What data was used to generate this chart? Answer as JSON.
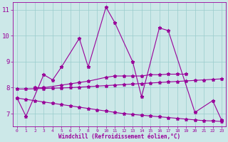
{
  "xlabel": "Windchill (Refroidissement éolien,°C)",
  "background_color": "#cce8e8",
  "line_color": "#990099",
  "grid_color": "#99cccc",
  "xlim": [
    -0.5,
    23.5
  ],
  "ylim": [
    6.5,
    11.3
  ],
  "xticks": [
    0,
    1,
    2,
    3,
    4,
    5,
    6,
    7,
    8,
    9,
    10,
    11,
    12,
    13,
    14,
    15,
    16,
    17,
    18,
    19,
    20,
    21,
    22,
    23
  ],
  "yticks": [
    7,
    8,
    9,
    10,
    11
  ],
  "s1_x": [
    0,
    1,
    3,
    4,
    5,
    7,
    8,
    10,
    11,
    13,
    14,
    16,
    17,
    20,
    22,
    23
  ],
  "s1_y": [
    7.6,
    6.9,
    8.5,
    8.3,
    8.8,
    9.9,
    8.8,
    11.1,
    10.5,
    9.0,
    7.65,
    10.3,
    10.2,
    7.05,
    7.5,
    6.75
  ],
  "s2_x": [
    2,
    3,
    5,
    6,
    7,
    8,
    10,
    11,
    12,
    13,
    14,
    15,
    16,
    17,
    18,
    19
  ],
  "s2_y": [
    8.0,
    8.0,
    8.1,
    8.15,
    8.2,
    8.25,
    8.4,
    8.45,
    8.45,
    8.45,
    8.45,
    8.5,
    8.5,
    8.52,
    8.52,
    8.52
  ],
  "s3_x": [
    0,
    1,
    2,
    3,
    4,
    5,
    6,
    7,
    8,
    9,
    10,
    11,
    12,
    13,
    14,
    15,
    16,
    17,
    18,
    19,
    20,
    21,
    22,
    23
  ],
  "s3_y": [
    7.95,
    7.95,
    7.96,
    7.97,
    7.98,
    7.99,
    8.0,
    8.02,
    8.04,
    8.06,
    8.08,
    8.1,
    8.12,
    8.14,
    8.16,
    8.18,
    8.2,
    8.22,
    8.24,
    8.26,
    8.28,
    8.3,
    8.32,
    8.34
  ],
  "s4_x": [
    0,
    1,
    2,
    3,
    4,
    5,
    6,
    7,
    8,
    9,
    10,
    11,
    12,
    13,
    14,
    15,
    16,
    17,
    18,
    19,
    20,
    21,
    22,
    23
  ],
  "s4_y": [
    7.6,
    7.55,
    7.5,
    7.45,
    7.4,
    7.35,
    7.3,
    7.25,
    7.2,
    7.15,
    7.1,
    7.05,
    7.0,
    6.97,
    6.94,
    6.91,
    6.88,
    6.85,
    6.82,
    6.79,
    6.76,
    6.73,
    6.72,
    6.7
  ]
}
